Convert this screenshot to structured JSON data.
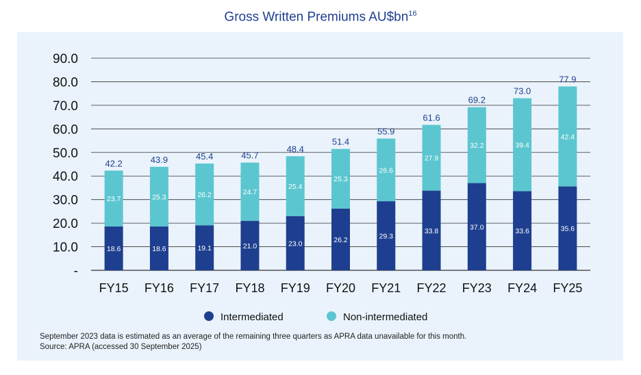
{
  "chart_data": {
    "type": "bar",
    "stacked": true,
    "title": "Gross Written Premiums AU$bn",
    "title_superscript": "16",
    "categories": [
      "FY15",
      "FY16",
      "FY17",
      "FY18",
      "FY19",
      "FY20",
      "FY21",
      "FY22",
      "FY23",
      "FY24",
      "FY25"
    ],
    "series": [
      {
        "name": "Intermediated",
        "color": "#1e3f8f",
        "values": [
          18.6,
          18.6,
          19.1,
          21.0,
          23.0,
          26.2,
          29.3,
          33.8,
          37.0,
          33.6,
          35.6
        ]
      },
      {
        "name": "Non-intermediated",
        "color": "#5bc6d0",
        "values": [
          23.7,
          25.3,
          26.2,
          24.7,
          25.4,
          25.3,
          26.6,
          27.9,
          32.2,
          39.4,
          42.4
        ]
      }
    ],
    "totals": [
      "42.2",
      "43.9",
      "45.4",
      "45.7",
      "48.4",
      "51.4",
      "55.9",
      "61.6",
      "69.2",
      "73.0",
      "77.9"
    ],
    "series_labels": [
      [
        "18.6",
        "18.6",
        "19.1",
        "21.0",
        "23.0",
        "26.2",
        "29.3",
        "33.8",
        "37.0",
        "33.6",
        "35.6"
      ],
      [
        "23.7",
        "25.3",
        "26.2",
        "24.7",
        "25.4",
        "25.3",
        "26.6",
        "27.9",
        "32.2",
        "39.4",
        "42.4"
      ]
    ],
    "yticks": [
      "-",
      "10.0",
      "20.0",
      "30.0",
      "40.0",
      "50.0",
      "60.0",
      "70.0",
      "80.0",
      "90.0"
    ],
    "ylim": [
      0,
      90
    ],
    "grid": true,
    "legend_position": "bottom"
  },
  "colors": {
    "title": "#1e3f8f",
    "panel": "#eaf3fb",
    "grid": "#333333"
  },
  "notes": {
    "line1": "September 2023 data is estimated as an average of the remaining three quarters as APRA data unavailable for this month.",
    "line2": "Source: APRA (accessed 30 September 2025)"
  }
}
